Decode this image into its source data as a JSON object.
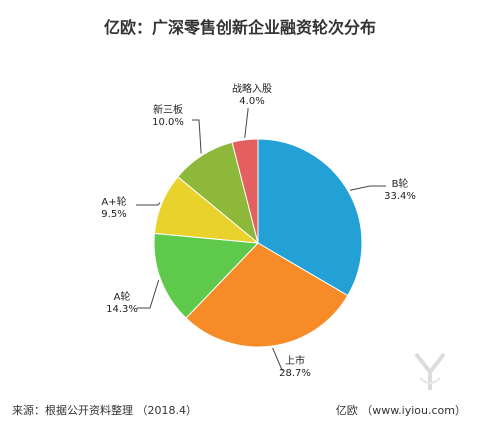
{
  "chart_data": {
    "type": "pie",
    "title": "亿欧：广深零售创新企业融资轮次分布",
    "slices": [
      {
        "label": "B轮",
        "pct_text": "33.4%",
        "value": 33.4,
        "color": "#23a0d6"
      },
      {
        "label": "上市",
        "pct_text": "28.7%",
        "value": 28.7,
        "color": "#f68b27"
      },
      {
        "label": "A轮",
        "pct_text": "14.3%",
        "value": 14.3,
        "color": "#5fc94b"
      },
      {
        "label": "A+轮",
        "pct_text": "9.5%",
        "value": 9.5,
        "color": "#e8d22b"
      },
      {
        "label": "新三板",
        "pct_text": "10.0%",
        "value": 10.0,
        "color": "#8eb83a"
      },
      {
        "label": "战略入股",
        "pct_text": "4.0%",
        "value": 4.0,
        "color": "#e45f5f"
      }
    ]
  },
  "footer": {
    "source": "来源：根据公开资料整理 （2018.4）",
    "credit": "亿欧 （www.iyiou.com）"
  },
  "watermark": {
    "icon": "iyiou-logo-icon",
    "color": "#dcdcdc"
  }
}
